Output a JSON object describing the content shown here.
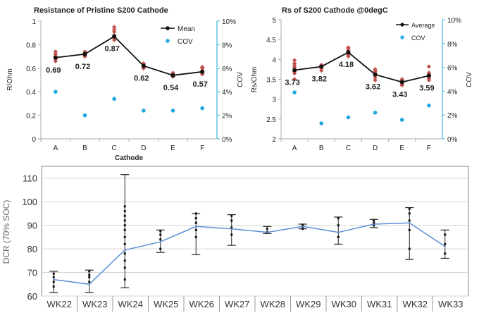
{
  "chart_data": [
    {
      "type": "line",
      "title": "Resistance of Pristine S200 Cathode",
      "xlabel": "Cathode",
      "ylabel": "R/Ohm",
      "y2label": "COV",
      "categories": [
        "A",
        "B",
        "C",
        "D",
        "E",
        "F"
      ],
      "ylim": [
        0,
        1
      ],
      "yticks": [
        "0",
        "0.2",
        "0.4",
        "0.6",
        "0.8",
        "1"
      ],
      "y2lim": [
        0,
        10
      ],
      "y2ticks": [
        "0%",
        "2%",
        "4%",
        "6%",
        "8%",
        "10%"
      ],
      "series": [
        {
          "name": "Mean",
          "values": [
            0.69,
            0.72,
            0.87,
            0.62,
            0.54,
            0.57
          ],
          "color": "#111111"
        },
        {
          "name": "COV",
          "axis": "right",
          "values": [
            4.0,
            2.0,
            3.4,
            2.4,
            2.4,
            2.6
          ],
          "color": "#1fa8e0"
        }
      ],
      "scatter": [
        [
          0.66,
          0.68,
          0.7,
          0.72,
          0.74
        ],
        [
          0.7,
          0.71,
          0.72,
          0.73,
          0.74
        ],
        [
          0.84,
          0.86,
          0.88,
          0.91,
          0.93,
          0.95
        ],
        [
          0.6,
          0.61,
          0.62,
          0.63,
          0.64
        ],
        [
          0.53,
          0.54,
          0.55,
          0.56,
          0.53
        ],
        [
          0.55,
          0.56,
          0.57,
          0.58,
          0.6,
          0.61
        ]
      ],
      "scatter_color": "#c0504d",
      "data_labels": [
        "0.69",
        "0.72",
        "0.87",
        "0.62",
        "0.54",
        "0.57"
      ],
      "legend_position": "top-right"
    },
    {
      "type": "line",
      "title": "Rs of S200 Cathode @0degC",
      "ylabel": "Rs/Ohm",
      "y2label": "COV",
      "categories": [
        "A",
        "B",
        "C",
        "D",
        "E",
        "F"
      ],
      "ylim": [
        2,
        5
      ],
      "yticks": [
        "2",
        "2.5",
        "3",
        "3.5",
        "4",
        "4.5",
        "5"
      ],
      "y2lim": [
        0,
        10
      ],
      "y2ticks": [
        "0%",
        "2%",
        "4%",
        "6%",
        "8%",
        "10%"
      ],
      "series": [
        {
          "name": "Average",
          "values": [
            3.73,
            3.82,
            4.18,
            3.62,
            3.43,
            3.59
          ],
          "color": "#111111"
        },
        {
          "name": "COV",
          "axis": "right",
          "values": [
            3.9,
            1.3,
            1.8,
            2.2,
            1.6,
            2.8
          ],
          "color": "#1fa8e0"
        }
      ],
      "scatter": [
        [
          3.5,
          3.65,
          3.7,
          3.8,
          3.85,
          3.9,
          3.98
        ],
        [
          3.72,
          3.77,
          3.8,
          3.84,
          3.86
        ],
        [
          4.08,
          4.12,
          4.15,
          4.18,
          4.22,
          4.26,
          4.3
        ],
        [
          3.48,
          3.55,
          3.6,
          3.65,
          3.7,
          3.75
        ],
        [
          3.35,
          3.38,
          3.42,
          3.45,
          3.48,
          3.5
        ],
        [
          3.48,
          3.52,
          3.57,
          3.62,
          3.66,
          3.82
        ]
      ],
      "scatter_color": "#c0504d",
      "data_labels": [
        "3.73",
        "3.82",
        "4.18",
        "3.62",
        "3.43",
        "3.59"
      ],
      "legend_position": "top-right"
    },
    {
      "type": "line",
      "title": "",
      "xlabel": "",
      "ylabel": "DCR (70% SOC)",
      "categories": [
        "WK22",
        "WK23",
        "WK24",
        "WK25",
        "WK26",
        "WK27",
        "WK28",
        "WK29",
        "WK30",
        "WK31",
        "WK32",
        "WK33"
      ],
      "ylim": [
        60,
        115
      ],
      "yticks": [
        "60",
        "70",
        "80",
        "90",
        "100",
        "110"
      ],
      "series": [
        {
          "name": "DCR",
          "values": [
            67,
            65,
            79.5,
            83,
            89.5,
            88.5,
            87,
            89.5,
            87,
            90.5,
            91,
            81
          ],
          "color": "#5b8dd6"
        }
      ],
      "ranges": [
        [
          61.5,
          70.5
        ],
        [
          61.5,
          71
        ],
        [
          63.5,
          111.5
        ],
        [
          78.5,
          88
        ],
        [
          77.5,
          95
        ],
        [
          81.5,
          94.5
        ],
        [
          86.5,
          89.5
        ],
        [
          88.5,
          90.5
        ],
        [
          82,
          93.5
        ],
        [
          89,
          92.5
        ],
        [
          75.5,
          97.5
        ],
        [
          76,
          88
        ]
      ],
      "scatter": [
        [
          64,
          66,
          68,
          69.5
        ],
        [
          66,
          68,
          69,
          70.5
        ],
        [
          67,
          72,
          75,
          78,
          82,
          85,
          88,
          90,
          92,
          94,
          96,
          98
        ],
        [
          80,
          84,
          86,
          87.5
        ],
        [
          85,
          88,
          91,
          93,
          95
        ],
        [
          86,
          89,
          92,
          94
        ],
        [
          87,
          88.5
        ],
        [
          88.5,
          89.5,
          90
        ],
        [
          85,
          90,
          93
        ],
        [
          90,
          91,
          92
        ],
        [
          80,
          88,
          92,
          95,
          97
        ],
        [
          78,
          82,
          86
        ]
      ]
    }
  ]
}
